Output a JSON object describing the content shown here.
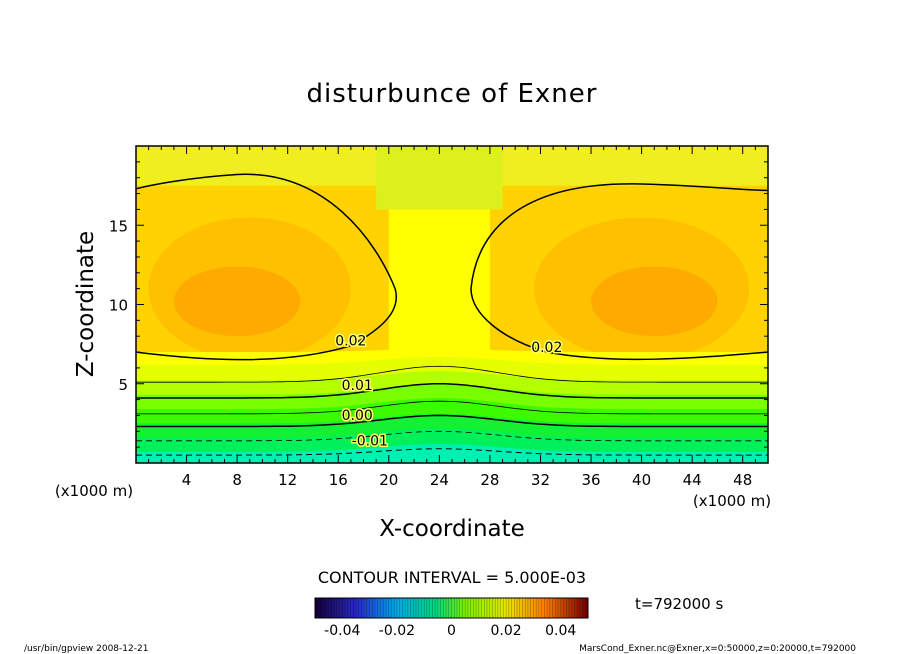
{
  "chart_data": {
    "type": "heatmap",
    "title": "disturbunce of Exner",
    "xlabel": "X-coordinate",
    "ylabel": "Z-coordinate",
    "x_unit": "(x1000 m)",
    "y_unit": "(x1000 m)",
    "xlim": [
      0,
      50
    ],
    "ylim": [
      0,
      20
    ],
    "x_ticks": [
      4,
      8,
      12,
      16,
      20,
      24,
      28,
      32,
      36,
      40,
      44,
      48
    ],
    "y_ticks": [
      5,
      10,
      15
    ],
    "contour_interval_text": "CONTOUR INTERVAL = 5.000E-03",
    "contour_labels": [
      {
        "text": "0.02",
        "x": 17,
        "z": 7.4
      },
      {
        "text": "0.02",
        "x": 32.5,
        "z": 7.0
      },
      {
        "text": "0.01",
        "x": 17.5,
        "z": 4.6
      },
      {
        "text": "0.00",
        "x": 17.5,
        "z": 2.7
      },
      {
        "text": "-0.01",
        "x": 18.5,
        "z": 1.1
      }
    ],
    "contour_levels": [
      -0.01,
      -0.005,
      0.0,
      0.005,
      0.01,
      0.015,
      0.02
    ],
    "colorbar": {
      "range": [
        -0.05,
        0.05
      ],
      "tick_labels": [
        "-0.04",
        "-0.02",
        "0",
        "0.02",
        "0.04"
      ],
      "tick_values": [
        -0.04,
        -0.02,
        0,
        0.02,
        0.04
      ]
    },
    "time_label": "t=792000 s",
    "grid": false
  },
  "footer": {
    "left": "/usr/bin/gpview   2008-12-21",
    "right": "MarsCond_Exner.nc@Exner,x=0:50000,z=0:20000,t=792000"
  }
}
